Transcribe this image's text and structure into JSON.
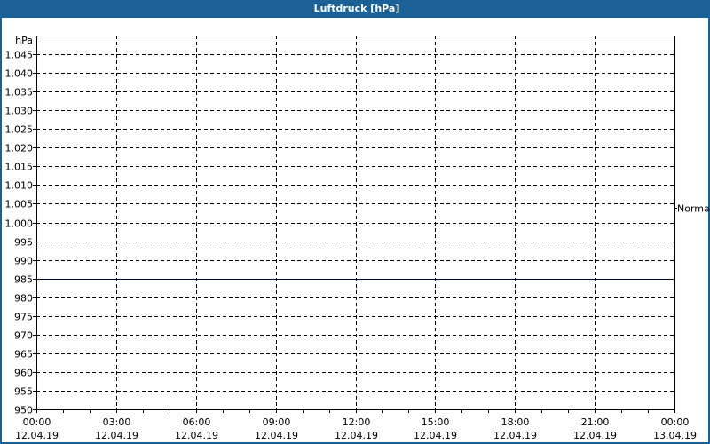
{
  "title": "Luftdruck [hPa]",
  "chart_data": {
    "type": "line",
    "title": "Luftdruck [hPa]",
    "ylabel": "hPa",
    "ylim": [
      950,
      1050
    ],
    "yticks": [
      950,
      955,
      960,
      965,
      970,
      975,
      980,
      985,
      990,
      995,
      1000,
      1005,
      1010,
      1015,
      1020,
      1025,
      1030,
      1035,
      1040,
      1045
    ],
    "ytick_labels": [
      "950",
      "955",
      "960",
      "965",
      "970",
      "975",
      "980",
      "985",
      "990",
      "995",
      "1.000",
      "1.005",
      "1.010",
      "1.015",
      "1.020",
      "1.025",
      "1.030",
      "1.035",
      "1.040",
      "1.045"
    ],
    "xlim_hours": [
      0,
      24
    ],
    "xticks": [
      {
        "hour": 0,
        "time": "00:00",
        "date": "12.04.19"
      },
      {
        "hour": 3,
        "time": "03:00",
        "date": "12.04.19"
      },
      {
        "hour": 6,
        "time": "06:00",
        "date": "12.04.19"
      },
      {
        "hour": 9,
        "time": "09:00",
        "date": "12.04.19"
      },
      {
        "hour": 12,
        "time": "12:00",
        "date": "12.04.19"
      },
      {
        "hour": 15,
        "time": "15:00",
        "date": "12.04.19"
      },
      {
        "hour": 18,
        "time": "18:00",
        "date": "12.04.19"
      },
      {
        "hour": 21,
        "time": "21:00",
        "date": "12.04.19"
      },
      {
        "hour": 24,
        "time": "00:00",
        "date": "13.04.19"
      }
    ],
    "grid": true,
    "series": [
      {
        "values_hpa_constant": 985,
        "color": "#000033"
      }
    ],
    "reference": {
      "label": "Normal",
      "value": 1004
    }
  }
}
